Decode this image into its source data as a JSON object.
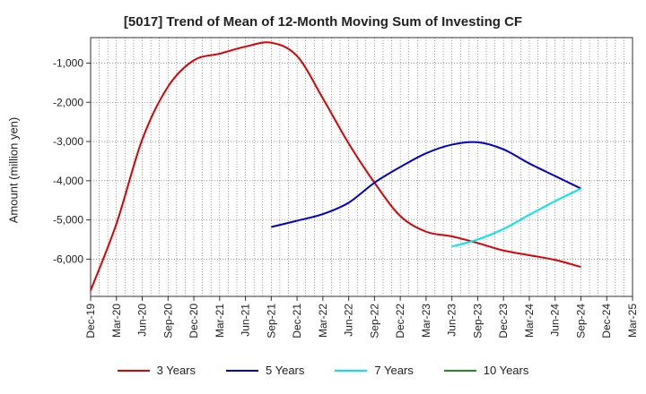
{
  "chart_data": {
    "type": "line",
    "title": "[5017]  Trend of Mean of 12-Month Moving Sum of Investing CF",
    "ylabel": "Amount (million yen)",
    "xlabel": "",
    "ylim": [
      -6950,
      -350
    ],
    "yticks": [
      -1000,
      -2000,
      -3000,
      -4000,
      -5000,
      -6000
    ],
    "ytick_labels": [
      "-1,000",
      "-2,000",
      "-3,000",
      "-4,000",
      "-5,000",
      "-6,000"
    ],
    "x_categories": [
      "Dec-19",
      "Mar-20",
      "Jun-20",
      "Sep-20",
      "Dec-20",
      "Mar-21",
      "Jun-21",
      "Sep-21",
      "Dec-21",
      "Mar-22",
      "Jun-22",
      "Sep-22",
      "Dec-22",
      "Mar-23",
      "Jun-23",
      "Sep-23",
      "Dec-23",
      "Mar-24",
      "Jun-24",
      "Sep-24",
      "Dec-24",
      "Mar-25"
    ],
    "grid": true,
    "legend_position": "bottom",
    "series": [
      {
        "name": "3 Years",
        "color": "#dd0000",
        "points": [
          [
            "Dec-19",
            -6800
          ],
          [
            "Mar-20",
            -5100
          ],
          [
            "Jun-20",
            -2950
          ],
          [
            "Sep-20",
            -1600
          ],
          [
            "Dec-20",
            -930
          ],
          [
            "Mar-21",
            -760
          ],
          [
            "Jun-21",
            -580
          ],
          [
            "Sep-21",
            -480
          ],
          [
            "Dec-21",
            -820
          ],
          [
            "Mar-22",
            -1900
          ],
          [
            "Jun-22",
            -3050
          ],
          [
            "Sep-22",
            -4050
          ],
          [
            "Dec-22",
            -4900
          ],
          [
            "Mar-23",
            -5300
          ],
          [
            "Jun-23",
            -5420
          ],
          [
            "Sep-23",
            -5590
          ],
          [
            "Dec-23",
            -5780
          ],
          [
            "Mar-24",
            -5900
          ],
          [
            "Jun-24",
            -6020
          ],
          [
            "Sep-24",
            -6200
          ]
        ]
      },
      {
        "name": "5 Years",
        "color": "#0000cc",
        "points": [
          [
            "Sep-21",
            -5180
          ],
          [
            "Dec-21",
            -5020
          ],
          [
            "Mar-22",
            -4850
          ],
          [
            "Jun-22",
            -4560
          ],
          [
            "Sep-22",
            -4050
          ],
          [
            "Dec-22",
            -3650
          ],
          [
            "Mar-23",
            -3300
          ],
          [
            "Jun-23",
            -3080
          ],
          [
            "Sep-23",
            -3020
          ],
          [
            "Dec-23",
            -3200
          ],
          [
            "Mar-24",
            -3560
          ],
          [
            "Jun-24",
            -3880
          ],
          [
            "Sep-24",
            -4200
          ]
        ]
      },
      {
        "name": "7 Years",
        "color": "#00e5ee",
        "points": [
          [
            "Jun-23",
            -5680
          ],
          [
            "Sep-23",
            -5500
          ],
          [
            "Dec-23",
            -5230
          ],
          [
            "Mar-24",
            -4870
          ],
          [
            "Jun-24",
            -4520
          ],
          [
            "Sep-24",
            -4200
          ]
        ]
      },
      {
        "name": "10 Years",
        "color": "#228b22",
        "points": []
      }
    ]
  }
}
